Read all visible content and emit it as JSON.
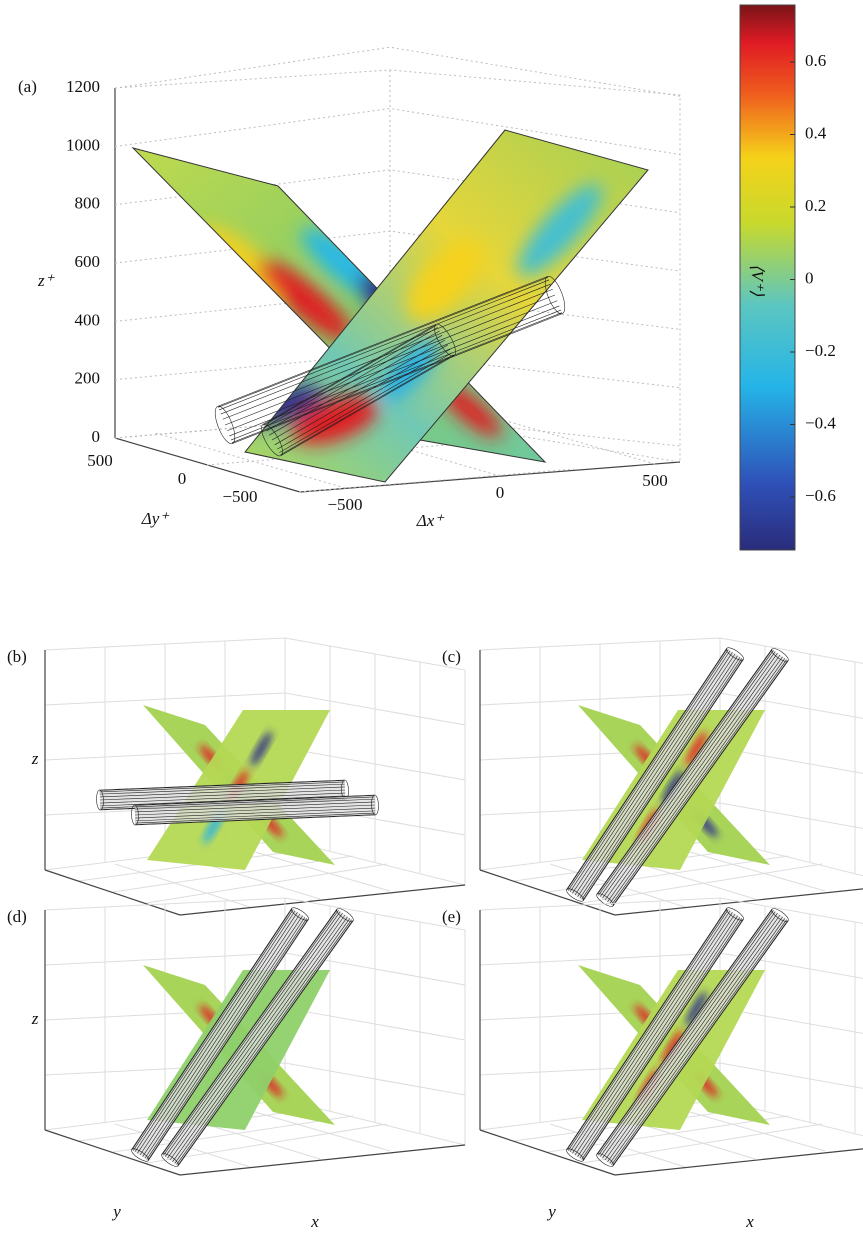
{
  "panel_a": {
    "label": "(a)",
    "z_label": "z⁺",
    "y_label": "Δy⁺",
    "x_label": "Δx⁺",
    "z_ticks": [
      "0",
      "200",
      "400",
      "600",
      "800",
      "1000",
      "1200"
    ],
    "y_ticks": [
      "500",
      "0",
      "−500"
    ],
    "x_ticks": [
      "−500",
      "0",
      "500"
    ]
  },
  "colorbar": {
    "label": "⟨V⁺⟩",
    "ticks": [
      "0.6",
      "0.4",
      "0.2",
      "0",
      "−0.2",
      "−0.4",
      "−0.6"
    ]
  },
  "panels": [
    {
      "label": "(b)",
      "z_label": "z"
    },
    {
      "label": "(c)"
    },
    {
      "label": "(d)",
      "z_label": "z",
      "y_label": "y",
      "x_label": "x"
    },
    {
      "label": "(e)",
      "y_label": "y",
      "x_label": "x"
    }
  ]
}
